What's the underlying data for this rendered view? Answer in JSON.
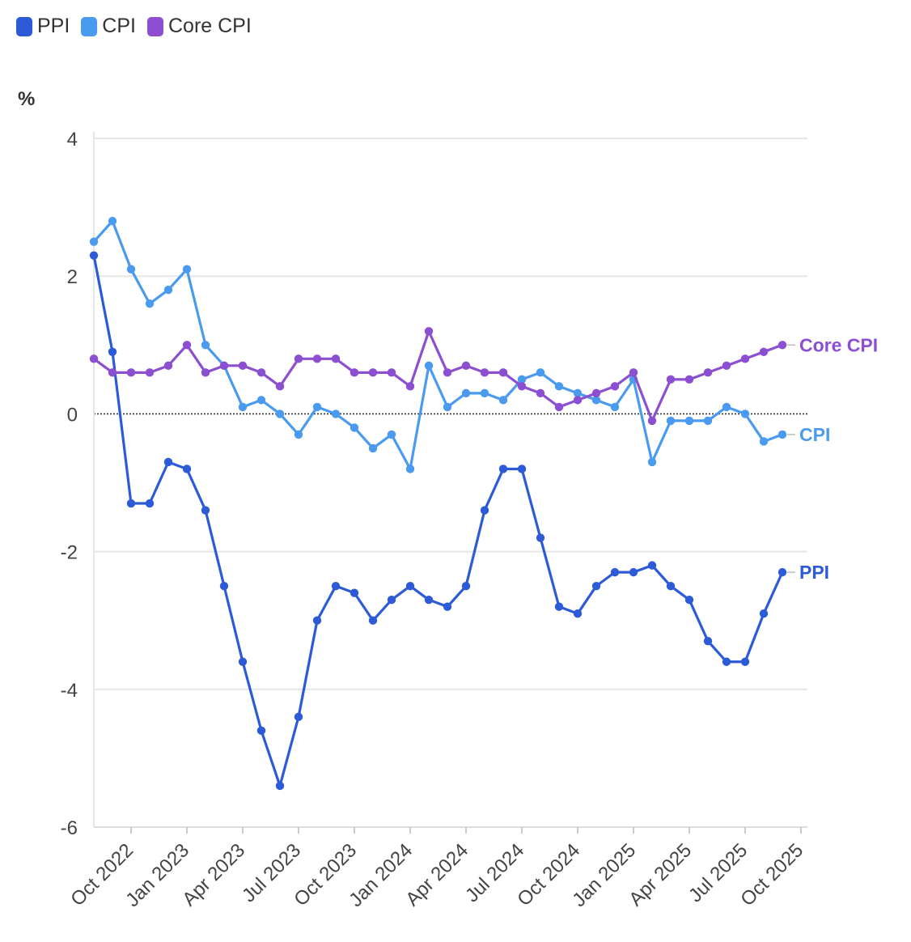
{
  "chart_data": {
    "type": "line",
    "title": "",
    "xlabel": "",
    "ylabel": "%",
    "ylim": [
      -6,
      4
    ],
    "yticks": [
      4,
      2,
      0,
      -2,
      -4,
      -6
    ],
    "ytick_labels": [
      "4",
      "2",
      "0",
      "-2",
      "-4",
      "-6"
    ],
    "zero_line": "dotted",
    "grid": true,
    "x": [
      "Aug 2022",
      "Sep 2022",
      "Oct 2022",
      "Nov 2022",
      "Dec 2022",
      "Jan 2023",
      "Feb 2023",
      "Mar 2023",
      "Apr 2023",
      "May 2023",
      "Jun 2023",
      "Jul 2023",
      "Aug 2023",
      "Sep 2023",
      "Oct 2023",
      "Nov 2023",
      "Dec 2023",
      "Jan 2024",
      "Feb 2024",
      "Mar 2024",
      "Apr 2024",
      "May 2024",
      "Jun 2024",
      "Jul 2024",
      "Aug 2024",
      "Sep 2024",
      "Oct 2024",
      "Nov 2024",
      "Dec 2024",
      "Jan 2025",
      "Feb 2025",
      "Mar 2025",
      "Apr 2025",
      "May 2025",
      "Jun 2025",
      "Jul 2025",
      "Aug 2025",
      "Sep 2025"
    ],
    "xtick_labels": [
      "Oct 2022",
      "Jan 2023",
      "Apr 2023",
      "Jul 2023",
      "Oct 2023",
      "Jan 2024",
      "Apr 2024",
      "Jul 2024",
      "Oct 2024",
      "Jan 2025",
      "Apr 2025",
      "Jul 2025",
      "Oct 2025"
    ],
    "series": [
      {
        "name": "PPI",
        "color": "#2d5bd8",
        "end_label": "PPI",
        "values": [
          2.3,
          0.9,
          -1.3,
          -1.3,
          -0.7,
          -0.8,
          -1.4,
          -2.5,
          -3.6,
          -4.6,
          -5.4,
          -4.4,
          -3.0,
          -2.5,
          -2.6,
          -3.0,
          -2.7,
          -2.5,
          -2.7,
          -2.8,
          -2.5,
          -1.4,
          -0.8,
          -0.8,
          -1.8,
          -2.8,
          -2.9,
          -2.5,
          -2.3,
          -2.3,
          -2.2,
          -2.5,
          -2.7,
          -3.3,
          -3.6,
          -3.6,
          -2.9,
          -2.3
        ]
      },
      {
        "name": "CPI",
        "color": "#4a9af0",
        "end_label": "CPI",
        "values": [
          2.5,
          2.8,
          2.1,
          1.6,
          1.8,
          2.1,
          1.0,
          0.7,
          0.1,
          0.2,
          0.0,
          -0.3,
          0.1,
          0.0,
          -0.2,
          -0.5,
          -0.3,
          -0.8,
          0.7,
          0.1,
          0.3,
          0.3,
          0.2,
          0.5,
          0.6,
          0.4,
          0.3,
          0.2,
          0.1,
          0.5,
          -0.7,
          -0.1,
          -0.1,
          -0.1,
          0.1,
          0.0,
          -0.4,
          -0.3
        ]
      },
      {
        "name": "Core CPI",
        "color": "#8c4fd2",
        "end_label": "Core CPI",
        "values": [
          0.8,
          0.6,
          0.6,
          0.6,
          0.7,
          1.0,
          0.6,
          0.7,
          0.7,
          0.6,
          0.4,
          0.8,
          0.8,
          0.8,
          0.6,
          0.6,
          0.6,
          0.4,
          1.2,
          0.6,
          0.7,
          0.6,
          0.6,
          0.4,
          0.3,
          0.1,
          0.2,
          0.3,
          0.4,
          0.6,
          -0.1,
          0.5,
          0.5,
          0.6,
          0.7,
          0.8,
          0.9,
          1.0
        ]
      }
    ],
    "legend": {
      "position": "top-left",
      "items": [
        "PPI",
        "CPI",
        "Core CPI"
      ]
    }
  }
}
